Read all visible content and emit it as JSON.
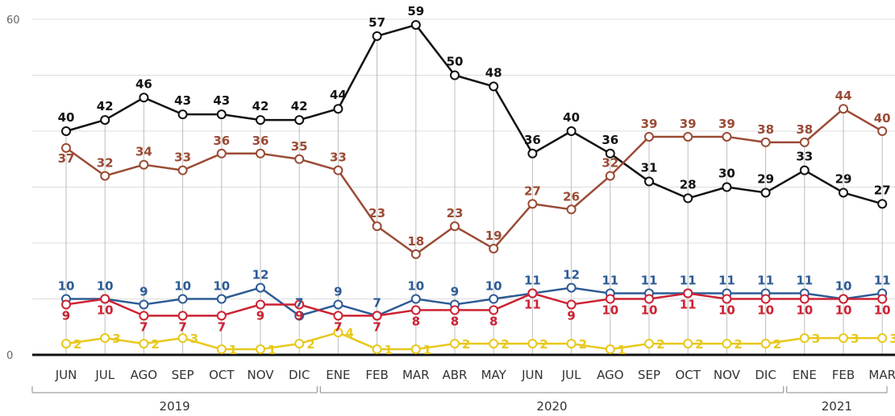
{
  "chart_data": {
    "type": "line",
    "title": "",
    "xlabel": "",
    "ylabel": "",
    "ylim": [
      0,
      60
    ],
    "y_ticks": [
      "0",
      "60"
    ],
    "grid": true,
    "categories": [
      "JUN",
      "JUL",
      "AGO",
      "SEP",
      "OCT",
      "NOV",
      "DIC",
      "ENE",
      "FEB",
      "MAR",
      "ABR",
      "MAY",
      "JUN",
      "JUL",
      "AGO",
      "SEP",
      "OCT",
      "NOV",
      "DIC",
      "ENE",
      "FEB",
      "MAR"
    ],
    "years": [
      {
        "label": "2019",
        "from": 0,
        "to": 6
      },
      {
        "label": "2020",
        "from": 7,
        "to": 18
      },
      {
        "label": "2021",
        "from": 19,
        "to": 21
      }
    ],
    "series": [
      {
        "color": "#111111",
        "values": [
          40,
          42,
          46,
          43,
          43,
          42,
          42,
          44,
          57,
          59,
          50,
          48,
          36,
          40,
          36,
          31,
          28,
          30,
          29,
          33,
          29,
          27
        ],
        "labels": [
          "40",
          "42",
          "46",
          "43",
          "43",
          "42",
          "42",
          "44",
          "57",
          "59",
          "50",
          "48",
          "36",
          "40",
          "36",
          "31",
          "28",
          "30",
          "29",
          "33",
          "29",
          "27"
        ]
      },
      {
        "color": "#9a4b35",
        "values": [
          37,
          32,
          34,
          33,
          36,
          36,
          35,
          33,
          23,
          18,
          23,
          19,
          27,
          26,
          32,
          39,
          39,
          39,
          38,
          38,
          44,
          40
        ],
        "labels": [
          "37",
          "32",
          "34",
          "33",
          "36",
          "36",
          "35",
          "33",
          "23",
          "18",
          "23",
          "19",
          "27",
          "26",
          "32",
          "39",
          "39",
          "39",
          "38",
          "38",
          "44",
          "40"
        ]
      },
      {
        "color": "#2d5b95",
        "values": [
          10,
          10,
          9,
          10,
          10,
          12,
          7,
          9,
          7,
          10,
          9,
          10,
          11,
          12,
          11,
          11,
          11,
          11,
          11,
          11,
          10,
          11
        ],
        "labels": [
          "10",
          "10",
          "9",
          "10",
          "10",
          "12",
          "7",
          "9",
          "7",
          "10",
          "9",
          "10",
          "11",
          "12",
          "11",
          "11",
          "11",
          "11",
          "11",
          "11",
          "10",
          "11"
        ]
      },
      {
        "color": "#cc2233",
        "values": [
          9,
          10,
          7,
          7,
          7,
          9,
          9,
          7,
          7,
          8,
          8,
          8,
          11,
          9,
          10,
          10,
          11,
          10,
          10,
          10,
          10,
          10
        ],
        "labels": [
          "9",
          "10",
          "7",
          "7",
          "7",
          "9",
          "9",
          "7",
          "7",
          "8",
          "8",
          "8",
          "11",
          "9",
          "10",
          "10",
          "11",
          "10",
          "10",
          "10",
          "10",
          "10"
        ]
      },
      {
        "color": "#e8c81c",
        "values": [
          2,
          3,
          2,
          3,
          1,
          1,
          2,
          4,
          1,
          1,
          2,
          2,
          2,
          2,
          1,
          2,
          2,
          2,
          2,
          3,
          3,
          3
        ],
        "labels": [
          "2",
          "3",
          "2",
          "3",
          "1",
          "1",
          "2",
          "4",
          "1",
          "1",
          "2",
          "2",
          "2",
          "2",
          "1",
          "2",
          "2",
          "2",
          "2",
          "3",
          "3",
          "3"
        ]
      }
    ]
  }
}
